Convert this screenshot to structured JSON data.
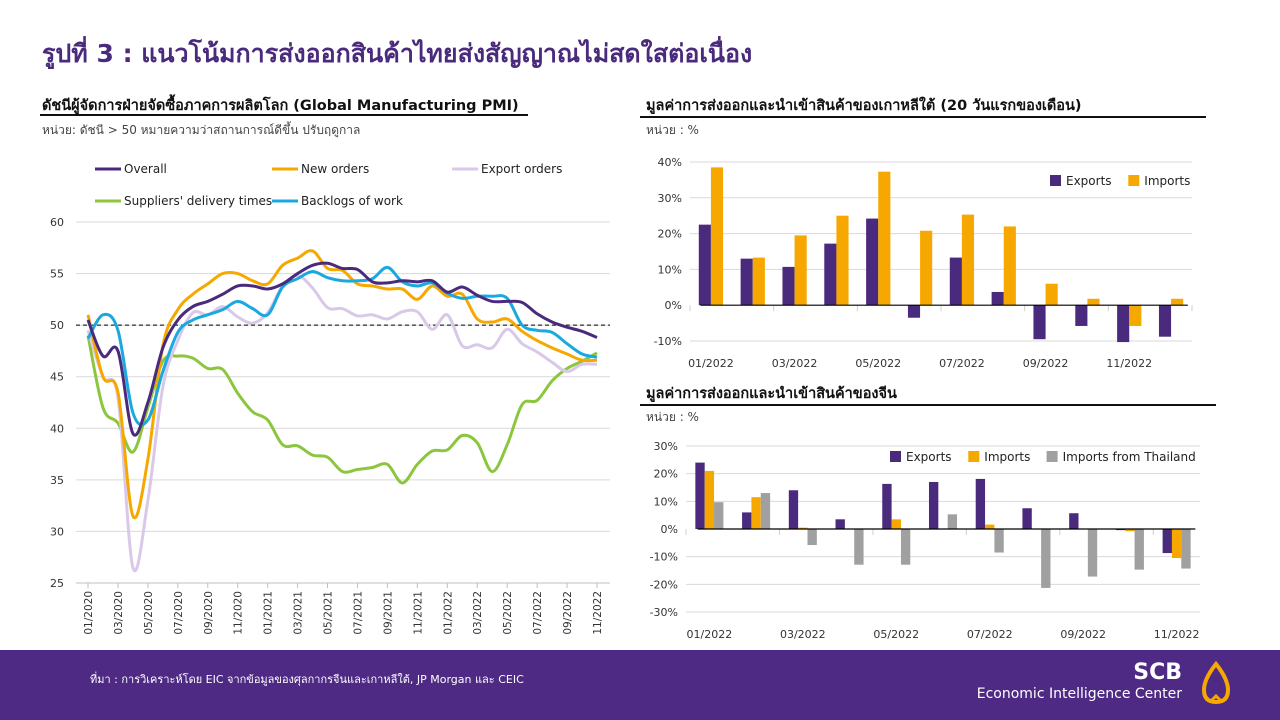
{
  "title": "รูปที่ 3 : แนวโน้มการส่งออกสินค้าไทยส่งสัญญาณไม่สดใสต่อเนื่อง",
  "footer": {
    "source": "ที่มา : การวิเคราะห์โดย EIC จากข้อมูลของศุลกากรจีนและเกาหลีใต้, JP Morgan และ CEIC",
    "brand": "SCB",
    "brand_sub": "Economic Intelligence Center"
  },
  "colors": {
    "purple": "#4a2a7d",
    "orange": "#f7a800",
    "lavender": "#d9c8e8",
    "green": "#8cc63f",
    "cyan": "#1aa9df",
    "gray": "#a0a0a0",
    "footer": "#4e2a84"
  },
  "chart_data": [
    {
      "type": "line",
      "title": "ดัชนีผู้จัดการฝ่ายจัดซื้อภาคการผลิตโลก (Global Manufacturing PMI)",
      "subtitle": "หน่วย: ดัชนี > 50 หมายความว่าสถานการณ์ดีขึ้น ปรับฤดูกาล",
      "ylim": [
        25,
        60
      ],
      "yticks": [
        "60",
        "55",
        "50",
        "45",
        "40",
        "35",
        "30",
        "25"
      ],
      "reference_line": 50,
      "grid": true,
      "legend": "top",
      "x": [
        "01/2020",
        "02/2020",
        "03/2020",
        "04/2020",
        "05/2020",
        "06/2020",
        "07/2020",
        "08/2020",
        "09/2020",
        "10/2020",
        "11/2020",
        "12/2020",
        "01/2021",
        "02/2021",
        "03/2021",
        "04/2021",
        "05/2021",
        "06/2021",
        "07/2021",
        "08/2021",
        "09/2021",
        "10/2021",
        "11/2021",
        "12/2021",
        "01/2022",
        "02/2022",
        "03/2022",
        "04/2022",
        "05/2022",
        "06/2022",
        "07/2022",
        "08/2022",
        "09/2022",
        "10/2022",
        "11/2022"
      ],
      "xtick_labels": [
        "01/2020",
        "03/2020",
        "05/2020",
        "07/2020",
        "09/2020",
        "11/2020",
        "01/2021",
        "03/2021",
        "05/2021",
        "07/2021",
        "09/2021",
        "11/2021",
        "01/2022",
        "03/2022",
        "05/2022",
        "07/2022",
        "09/2022",
        "11/2022"
      ],
      "series": [
        {
          "name": "Overall",
          "color": "#4a2a7d",
          "values": [
            50.5,
            47.0,
            47.5,
            39.5,
            42.5,
            47.8,
            50.5,
            51.8,
            52.3,
            53.0,
            53.8,
            53.8,
            53.5,
            54.0,
            55.0,
            55.8,
            56.0,
            55.5,
            55.4,
            54.2,
            54.1,
            54.3,
            54.2,
            54.3,
            53.2,
            53.7,
            52.9,
            52.3,
            52.3,
            52.2,
            51.1,
            50.3,
            49.8,
            49.4,
            48.8
          ]
        },
        {
          "name": "New orders",
          "color": "#f7a800",
          "values": [
            51.0,
            45.0,
            43.5,
            31.5,
            37.0,
            48.0,
            51.5,
            53.0,
            54.0,
            55.0,
            55.0,
            54.3,
            54.0,
            55.8,
            56.5,
            57.2,
            55.5,
            55.3,
            54.0,
            53.8,
            53.5,
            53.5,
            52.5,
            53.8,
            52.8,
            53.0,
            50.6,
            50.3,
            50.6,
            49.4,
            48.5,
            47.8,
            47.2,
            46.6,
            46.6
          ]
        },
        {
          "name": "Export orders",
          "color": "#d9c8e8",
          "values": [
            49.5,
            45.0,
            43.0,
            26.5,
            33.0,
            44.0,
            48.5,
            51.2,
            51.0,
            51.8,
            50.8,
            50.2,
            51.2,
            53.8,
            54.8,
            53.6,
            51.7,
            51.6,
            50.9,
            51.0,
            50.6,
            51.3,
            51.3,
            49.6,
            51.0,
            48.0,
            48.1,
            47.8,
            49.6,
            48.2,
            47.4,
            46.4,
            45.5,
            46.2,
            46.2
          ]
        },
        {
          "name": "Suppliers' delivery times",
          "color": "#8cc63f",
          "values": [
            49.0,
            42.0,
            40.5,
            37.7,
            42.0,
            46.5,
            47.0,
            46.8,
            45.8,
            45.7,
            43.4,
            41.6,
            40.8,
            38.4,
            38.3,
            37.4,
            37.2,
            35.8,
            36.0,
            36.2,
            36.5,
            34.7,
            36.5,
            37.8,
            37.9,
            39.3,
            38.6,
            35.8,
            38.4,
            42.3,
            42.7,
            44.6,
            45.8,
            46.5,
            47.3
          ]
        },
        {
          "name": "Backlogs of work",
          "color": "#1aa9df",
          "values": [
            48.7,
            51.0,
            49.5,
            41.5,
            40.8,
            45.5,
            49.3,
            50.5,
            51.0,
            51.5,
            52.3,
            51.6,
            51.0,
            53.7,
            54.5,
            55.2,
            54.6,
            54.3,
            54.3,
            54.5,
            55.6,
            54.2,
            53.8,
            54.1,
            53.1,
            52.6,
            52.8,
            52.8,
            52.6,
            50.0,
            49.5,
            49.3,
            48.2,
            47.2,
            46.9
          ]
        }
      ]
    },
    {
      "type": "bar",
      "title": "มูลค่าการส่งออกและนำเข้าสินค้าของเกาหลีใต้ (20 วันแรกของเดือน)",
      "subtitle": "หน่วย : %",
      "ylim": [
        -10,
        40
      ],
      "yticks": [
        "40%",
        "30%",
        "20%",
        "10%",
        "0%",
        "-10%"
      ],
      "legend": "top-right",
      "categories": [
        "01/2022",
        "02/2022",
        "03/2022",
        "04/2022",
        "05/2022",
        "06/2022",
        "07/2022",
        "08/2022",
        "09/2022",
        "10/2022",
        "11/2022",
        "12/2022"
      ],
      "xtick_labels": [
        "01/2022",
        "",
        "03/2022",
        "",
        "05/2022",
        "",
        "07/2022",
        "",
        "09/2022",
        "",
        "11/2022",
        ""
      ],
      "series": [
        {
          "name": "Exports",
          "color": "#4a2a7d",
          "values": [
            22.5,
            13.0,
            10.7,
            17.2,
            24.2,
            -3.5,
            13.3,
            3.7,
            -9.5,
            -5.8,
            -10.3,
            -8.8
          ]
        },
        {
          "name": "Imports",
          "color": "#f7a800",
          "values": [
            38.5,
            13.3,
            19.5,
            25.0,
            37.3,
            20.8,
            25.3,
            22.0,
            6.0,
            1.8,
            -5.8,
            1.8
          ]
        }
      ]
    },
    {
      "type": "bar",
      "title": "มูลค่าการส่งออกและนำเข้าสินค้าของจีน",
      "subtitle": "หน่วย : %",
      "ylim": [
        -30,
        30
      ],
      "yticks": [
        "30%",
        "20%",
        "10%",
        "0%",
        "-10%",
        "-20%",
        "-30%"
      ],
      "legend": "top-right",
      "categories": [
        "01/2022",
        "02/2022",
        "03/2022",
        "04/2022",
        "05/2022",
        "06/2022",
        "07/2022",
        "08/2022",
        "09/2022",
        "10/2022",
        "11/2022"
      ],
      "xtick_labels": [
        "01/2022",
        "",
        "03/2022",
        "",
        "05/2022",
        "",
        "07/2022",
        "",
        "09/2022",
        "",
        "11/2022"
      ],
      "series": [
        {
          "name": "Exports",
          "color": "#4a2a7d",
          "values": [
            24.0,
            6.0,
            14.0,
            3.5,
            16.3,
            17.0,
            18.1,
            7.5,
            5.7,
            -0.4,
            -8.7
          ]
        },
        {
          "name": "Imports",
          "color": "#f7a800",
          "values": [
            21.0,
            11.5,
            0.5,
            0.0,
            3.5,
            0.0,
            1.6,
            0.0,
            0.0,
            -0.8,
            -10.5
          ]
        },
        {
          "name": "Imports from Thailand",
          "color": "#a0a0a0",
          "values": [
            9.7,
            13.0,
            -5.8,
            -12.9,
            -12.9,
            5.3,
            -8.5,
            -21.3,
            -17.2,
            -14.7,
            -14.3
          ]
        }
      ]
    }
  ]
}
